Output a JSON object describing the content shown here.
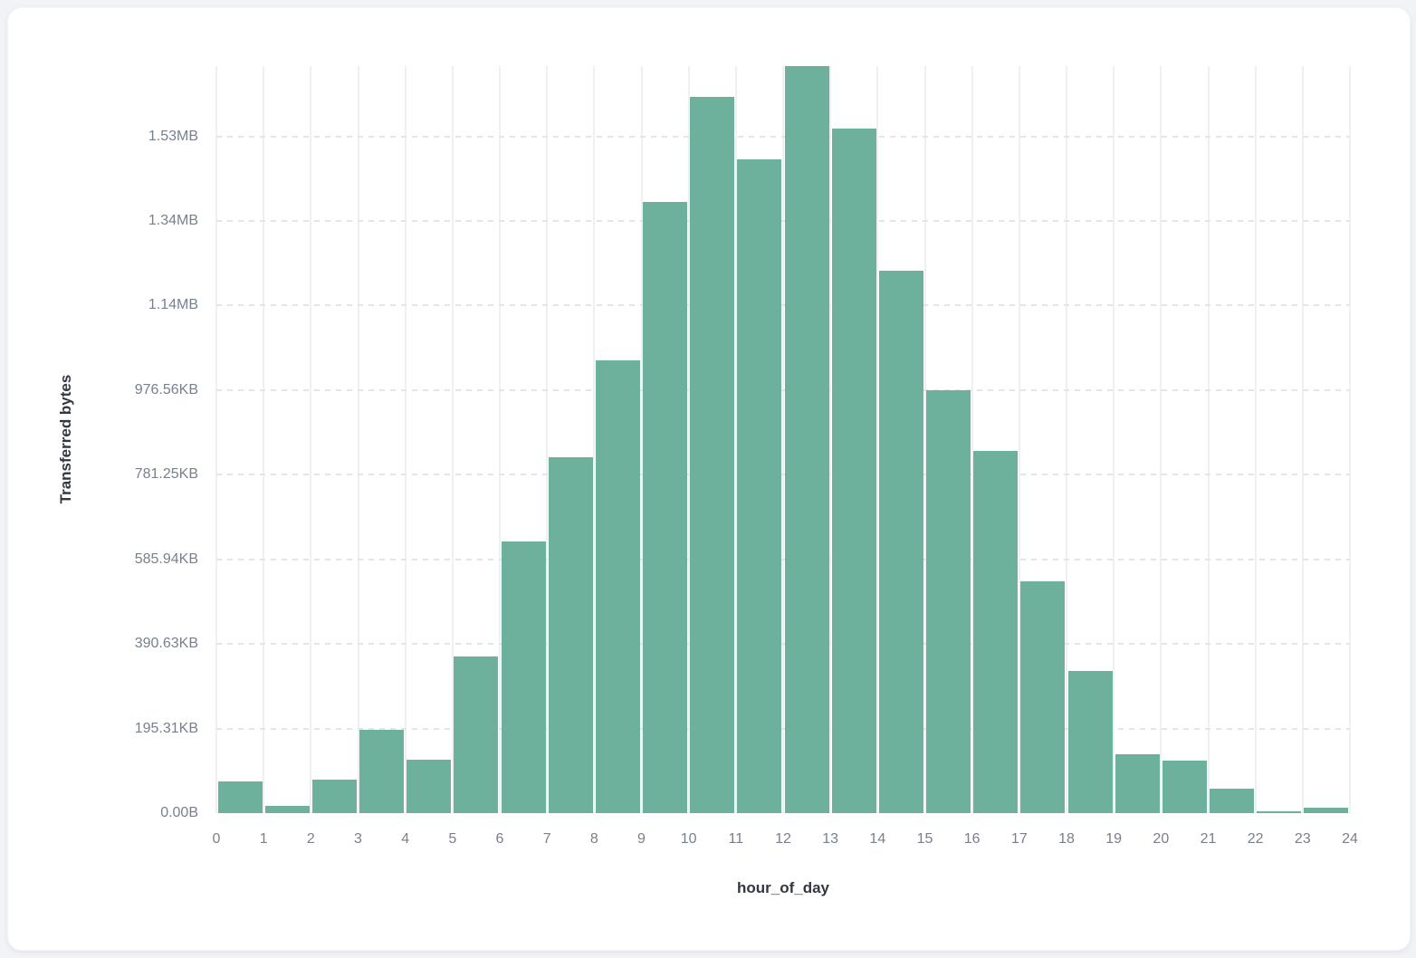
{
  "page": {
    "background": "#f2f3f6"
  },
  "card": {
    "background": "#ffffff"
  },
  "chart_data": {
    "type": "bar",
    "title": "",
    "xlabel": "hour_of_day",
    "ylabel": "Transferred bytes",
    "legend": false,
    "grid": true,
    "xlim": [
      0,
      24
    ],
    "ylim_bytes": [
      0,
      1766000
    ],
    "bin_width_hours": 1,
    "x_bins": [
      0,
      1,
      2,
      3,
      4,
      5,
      6,
      7,
      8,
      9,
      10,
      11,
      12,
      13,
      14,
      15,
      16,
      17,
      18,
      19,
      20,
      21,
      22,
      23
    ],
    "values_bytes": [
      75000,
      17000,
      79000,
      197000,
      126000,
      370000,
      643000,
      842000,
      1070000,
      1445000,
      1693000,
      1546000,
      1766000,
      1618000,
      1282000,
      999000,
      857000,
      549000,
      337000,
      139000,
      124000,
      58000,
      4300,
      12900
    ],
    "x_tick_labels": [
      "0",
      "1",
      "2",
      "3",
      "4",
      "5",
      "6",
      "7",
      "8",
      "9",
      "10",
      "11",
      "12",
      "13",
      "14",
      "15",
      "16",
      "17",
      "18",
      "19",
      "20",
      "21",
      "22",
      "23",
      "24"
    ],
    "y_ticks": [
      {
        "value": 0,
        "label": "0.00B"
      },
      {
        "value": 200000,
        "label": "195.31KB"
      },
      {
        "value": 400000,
        "label": "390.63KB"
      },
      {
        "value": 600000,
        "label": "585.94KB"
      },
      {
        "value": 800000,
        "label": "781.25KB"
      },
      {
        "value": 1000000,
        "label": "976.56KB"
      },
      {
        "value": 1200000,
        "label": "1.14MB"
      },
      {
        "value": 1400000,
        "label": "1.34MB"
      },
      {
        "value": 1600000,
        "label": "1.53MB"
      }
    ],
    "colors": {
      "bar": "#6db19c",
      "vgrid": "#eef0f3",
      "hgrid": "#e2e5ea",
      "tick_label": "#78808e",
      "axis_title": "#343741"
    }
  }
}
